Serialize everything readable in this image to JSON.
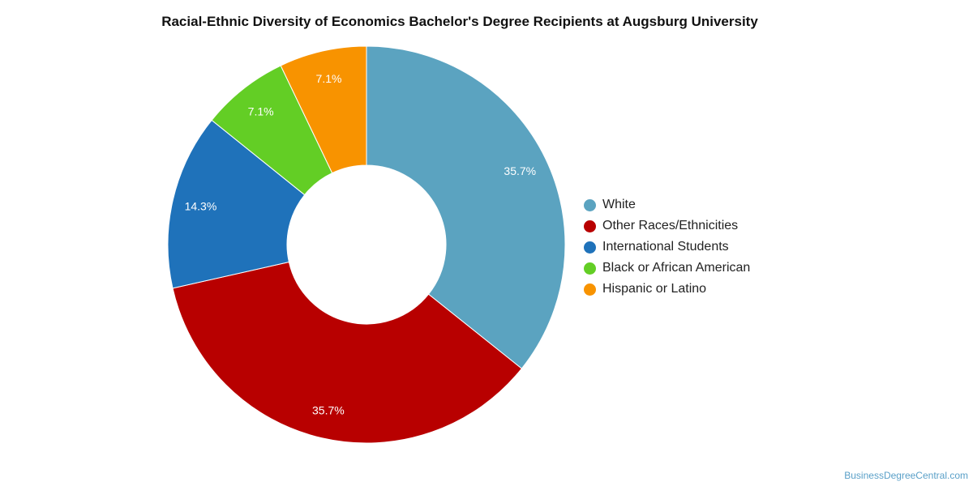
{
  "title": "Racial-Ethnic Diversity of Economics Bachelor's Degree Recipients at Augsburg University",
  "watermark": "BusinessDegreeCentral.com",
  "chart_data": {
    "type": "pie",
    "variant": "donut",
    "title": "Racial-Ethnic Diversity of Economics Bachelor's Degree Recipients at Augsburg University",
    "legend_position": "right",
    "slices": [
      {
        "label": "White",
        "value": 35.7,
        "display": "35.7%",
        "color": "#5ba3c0"
      },
      {
        "label": "Other Races/Ethnicities",
        "value": 35.7,
        "display": "35.7%",
        "color": "#b80000"
      },
      {
        "label": "International Students",
        "value": 14.3,
        "display": "14.3%",
        "color": "#1f72ba"
      },
      {
        "label": "Black or African American",
        "value": 7.1,
        "display": "7.1%",
        "color": "#63ce25"
      },
      {
        "label": "Hispanic or Latino",
        "value": 7.1,
        "display": "7.1%",
        "color": "#f89300"
      }
    ]
  }
}
